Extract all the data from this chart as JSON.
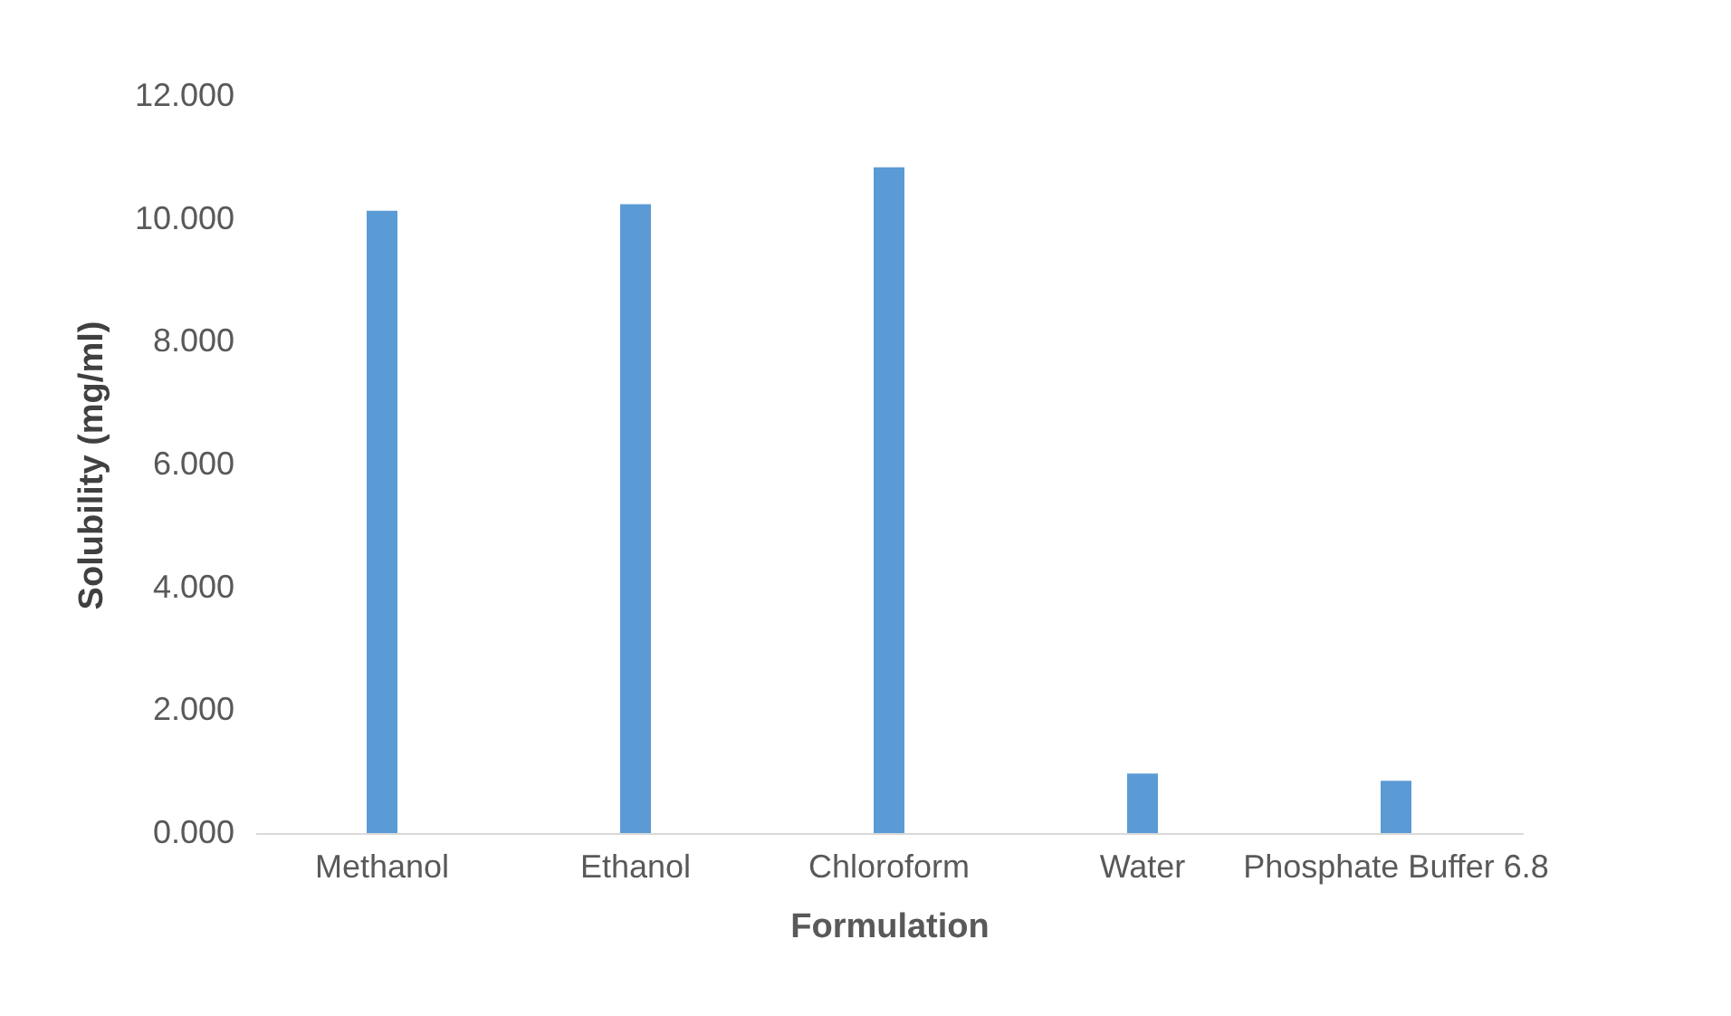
{
  "chart_data": {
    "type": "bar",
    "xlabel": "Formulation",
    "ylabel": "Solubility (mg/ml)",
    "categories": [
      "Methanol",
      "Ethanol",
      "Chloroform",
      "Water",
      "Phosphate Buffer 6.8"
    ],
    "values": [
      10.13,
      10.24,
      10.84,
      0.97,
      0.85
    ],
    "color": "#5b9bd5",
    "ylim": [
      0,
      12
    ],
    "yticks": [
      {
        "value": 0,
        "label": "0.000"
      },
      {
        "value": 2,
        "label": "2.000"
      },
      {
        "value": 4,
        "label": "4.000"
      },
      {
        "value": 6,
        "label": "6.000"
      },
      {
        "value": 8,
        "label": "8.000"
      },
      {
        "value": 10,
        "label": "10.000"
      },
      {
        "value": 12,
        "label": "12.000"
      }
    ],
    "grid": false
  }
}
